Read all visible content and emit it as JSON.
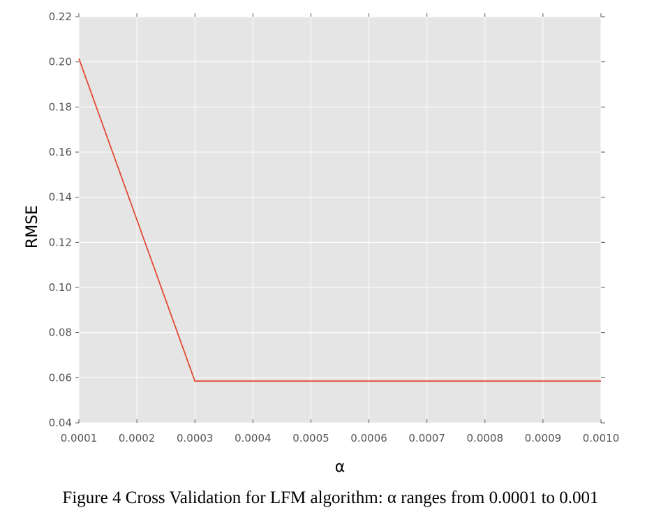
{
  "chart_data": {
    "type": "line",
    "x": [
      0.0001,
      0.0002,
      0.0003,
      0.0004,
      0.0005,
      0.0006,
      0.0007,
      0.0008,
      0.0009,
      0.001
    ],
    "series": [
      {
        "name": "RMSE",
        "values": [
          0.2015,
          0.13,
          0.0585,
          0.0585,
          0.0585,
          0.0585,
          0.0585,
          0.0585,
          0.0585,
          0.0585
        ]
      }
    ],
    "xlim": [
      0.0001,
      0.001
    ],
    "ylim": [
      0.04,
      0.22
    ],
    "xticks": [
      "0.0001",
      "0.0002",
      "0.0003",
      "0.0004",
      "0.0005",
      "0.0006",
      "0.0007",
      "0.0008",
      "0.0009",
      "0.0010"
    ],
    "yticks": [
      "0.04",
      "0.06",
      "0.08",
      "0.10",
      "0.12",
      "0.14",
      "0.16",
      "0.18",
      "0.20",
      "0.22"
    ],
    "xlabel": "α",
    "ylabel": "RMSE",
    "grid": true,
    "colors": {
      "background": "#e5e5e5",
      "grid": "#ffffff",
      "line": "#e24a33"
    }
  },
  "caption": "Figure 4 Cross Validation for LFM algorithm: α ranges from 0.0001 to 0.001"
}
